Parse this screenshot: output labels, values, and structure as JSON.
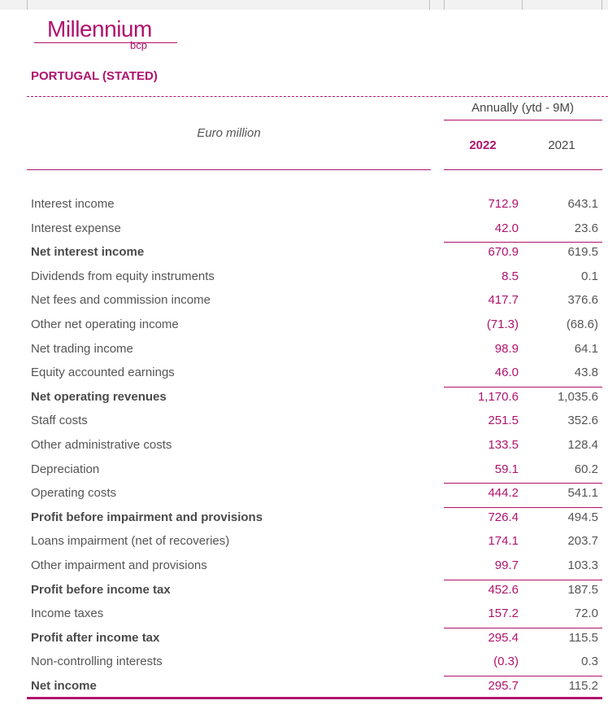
{
  "brand": {
    "name": "Millennium",
    "sub": "bcp",
    "color": "#b0126d"
  },
  "section_title": "PORTUGAL (STATED)",
  "unit": "Euro million",
  "period_header": "Annually (ytd - 9M)",
  "columns": [
    "2022",
    "2021"
  ],
  "rows": [
    {
      "label": "Interest income",
      "v2022": "712.9",
      "v2021": "643.1",
      "bold": false,
      "ruled": false
    },
    {
      "label": "Interest expense",
      "v2022": "42.0",
      "v2021": "23.6",
      "bold": false,
      "ruled": false
    },
    {
      "label": "Net interest income",
      "v2022": "670.9",
      "v2021": "619.5",
      "bold": true,
      "ruled": true
    },
    {
      "label": "Dividends from equity instruments",
      "v2022": "8.5",
      "v2021": "0.1",
      "bold": false,
      "ruled": false
    },
    {
      "label": "Net fees and commission income",
      "v2022": "417.7",
      "v2021": "376.6",
      "bold": false,
      "ruled": false
    },
    {
      "label": "Other net operating income",
      "v2022": "(71.3)",
      "v2021": "(68.6)",
      "bold": false,
      "ruled": false
    },
    {
      "label": "Net trading income",
      "v2022": "98.9",
      "v2021": "64.1",
      "bold": false,
      "ruled": false
    },
    {
      "label": "Equity accounted earnings",
      "v2022": "46.0",
      "v2021": "43.8",
      "bold": false,
      "ruled": false
    },
    {
      "label": "Net operating revenues",
      "v2022": "1,170.6",
      "v2021": "1,035.6",
      "bold": true,
      "ruled": true
    },
    {
      "label": "Staff costs",
      "v2022": "251.5",
      "v2021": "352.6",
      "bold": false,
      "ruled": false
    },
    {
      "label": "Other administrative costs",
      "v2022": "133.5",
      "v2021": "128.4",
      "bold": false,
      "ruled": false
    },
    {
      "label": "Depreciation",
      "v2022": "59.1",
      "v2021": "60.2",
      "bold": false,
      "ruled": false
    },
    {
      "label": "Operating costs",
      "v2022": "444.2",
      "v2021": "541.1",
      "bold": false,
      "ruled": true
    },
    {
      "label": "Profit before impairment and provisions",
      "v2022": "726.4",
      "v2021": "494.5",
      "bold": true,
      "ruled": true
    },
    {
      "label": "Loans impairment (net of recoveries)",
      "v2022": "174.1",
      "v2021": "203.7",
      "bold": false,
      "ruled": false
    },
    {
      "label": "Other impairment and provisions",
      "v2022": "99.7",
      "v2021": "103.3",
      "bold": false,
      "ruled": false
    },
    {
      "label": "Profit before income tax",
      "v2022": "452.6",
      "v2021": "187.5",
      "bold": true,
      "ruled": true
    },
    {
      "label": "Income taxes",
      "v2022": "157.2",
      "v2021": "72.0",
      "bold": false,
      "ruled": false
    },
    {
      "label": "Profit after income tax",
      "v2022": "295.4",
      "v2021": "115.5",
      "bold": true,
      "ruled": true
    },
    {
      "label": "Non-controlling interests",
      "v2022": "(0.3)",
      "v2021": "0.3",
      "bold": false,
      "ruled": false
    },
    {
      "label": "Net income",
      "v2022": "295.7",
      "v2021": "115.2",
      "bold": true,
      "ruled": true
    }
  ]
}
